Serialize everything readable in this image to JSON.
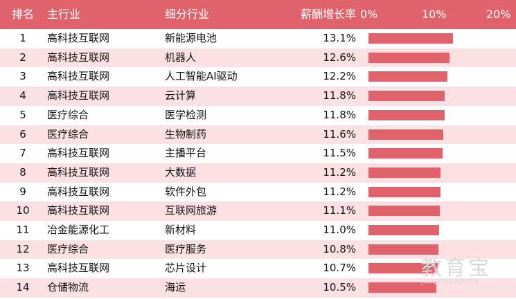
{
  "header": {
    "rank": "排名",
    "main_industry": "主行业",
    "sub_industry": "细分行业",
    "growth": "薪酬增长率",
    "tick_0": "0%",
    "tick_10": "10%",
    "tick_20": "20%"
  },
  "chart_data": {
    "type": "table",
    "columns": [
      "排名",
      "主行业",
      "细分行业",
      "薪酬增长率"
    ],
    "xlim": [
      0,
      20
    ],
    "rows": [
      {
        "rank": "1",
        "main": "高科技互联网",
        "sub": "新能源电池",
        "value_label": "13.1%",
        "value": 13.1
      },
      {
        "rank": "2",
        "main": "高科技互联网",
        "sub": "机器人",
        "value_label": "12.6%",
        "value": 12.6
      },
      {
        "rank": "3",
        "main": "高科技互联网",
        "sub": "人工智能AI驱动",
        "value_label": "12.2%",
        "value": 12.2
      },
      {
        "rank": "4",
        "main": "高科技互联网",
        "sub": "云计算",
        "value_label": "11.8%",
        "value": 11.8
      },
      {
        "rank": "5",
        "main": "医疗综合",
        "sub": "医学检测",
        "value_label": "11.8%",
        "value": 11.8
      },
      {
        "rank": "6",
        "main": "医疗综合",
        "sub": "生物制药",
        "value_label": "11.6%",
        "value": 11.6
      },
      {
        "rank": "7",
        "main": "高科技互联网",
        "sub": "主播平台",
        "value_label": "11.5%",
        "value": 11.5
      },
      {
        "rank": "8",
        "main": "高科技互联网",
        "sub": "大数据",
        "value_label": "11.2%",
        "value": 11.2
      },
      {
        "rank": "9",
        "main": "高科技互联网",
        "sub": "软件外包",
        "value_label": "11.2%",
        "value": 11.2
      },
      {
        "rank": "10",
        "main": "高科技互联网",
        "sub": "互联网旅游",
        "value_label": "11.1%",
        "value": 11.1
      },
      {
        "rank": "11",
        "main": "冶金能源化工",
        "sub": "新材料",
        "value_label": "11.0%",
        "value": 11.0
      },
      {
        "rank": "12",
        "main": "医疗综合",
        "sub": "医疗服务",
        "value_label": "10.8%",
        "value": 10.8
      },
      {
        "rank": "13",
        "main": "高科技互联网",
        "sub": "芯片设计",
        "value_label": "10.7%",
        "value": 10.7
      },
      {
        "rank": "14",
        "main": "仓储物流",
        "sub": "海运",
        "value_label": "10.5%",
        "value": 10.5
      }
    ],
    "bar_color": "#e0626b",
    "header_color": "#e0626b",
    "stripe_color": "#fbe1e3"
  },
  "watermark": {
    "text": "教育宝",
    "subtext": "JIAOYUBAO.CN"
  }
}
